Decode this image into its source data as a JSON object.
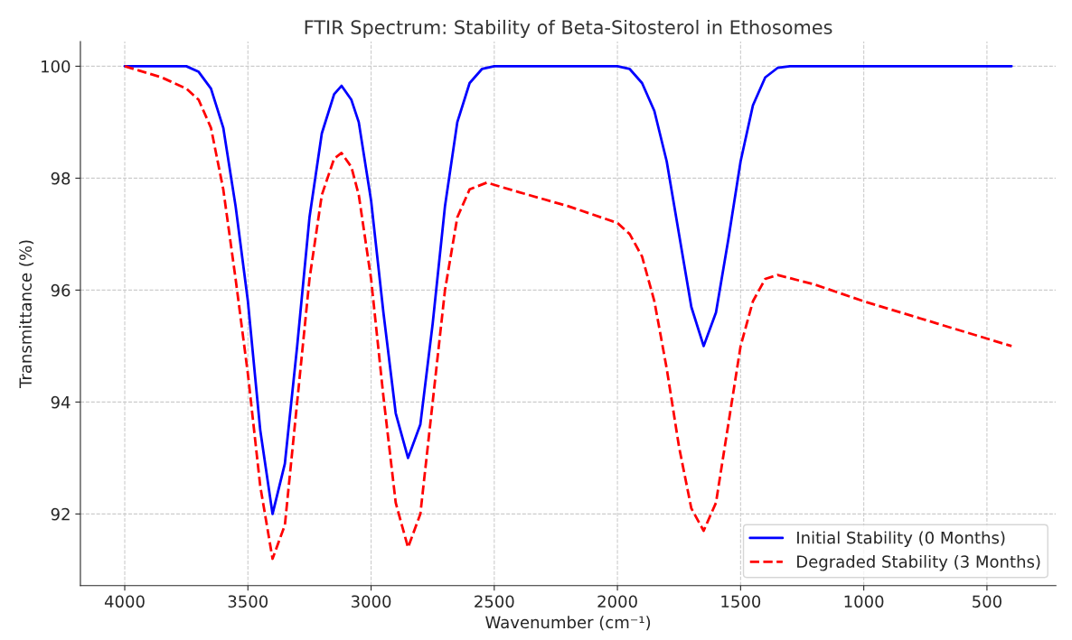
{
  "chart_data": {
    "type": "line",
    "title": "FTIR Spectrum: Stability of Beta-Sitosterol in Ethosomes",
    "xlabel": "Wavenumber (cm⁻¹)",
    "ylabel": "Transmittance (%)",
    "xlim": [
      4180,
      220
    ],
    "xticks": [
      4000,
      3500,
      3000,
      2500,
      2000,
      1500,
      1000,
      500
    ],
    "ylim": [
      90.72,
      100.44
    ],
    "yticks": [
      92,
      94,
      96,
      98,
      100
    ],
    "grid": true,
    "legend": "bottom right",
    "series": [
      {
        "name": "Initial Stability (0 Months)",
        "color": "#0000ff",
        "line_style": "solid",
        "x": [
          4000,
          3750,
          3700,
          3650,
          3600,
          3550,
          3500,
          3450,
          3400,
          3350,
          3300,
          3250,
          3200,
          3150,
          3120,
          3080,
          3050,
          3000,
          2950,
          2900,
          2850,
          2800,
          2750,
          2700,
          2650,
          2600,
          2550,
          2500,
          2000,
          1950,
          1900,
          1850,
          1800,
          1750,
          1700,
          1650,
          1600,
          1550,
          1500,
          1450,
          1400,
          1350,
          1300,
          400
        ],
        "values": [
          100,
          100,
          99.9,
          99.6,
          98.9,
          97.5,
          95.8,
          93.5,
          92.0,
          92.9,
          95.0,
          97.3,
          98.8,
          99.5,
          99.65,
          99.4,
          99.0,
          97.6,
          95.6,
          93.8,
          93.0,
          93.6,
          95.4,
          97.5,
          99.0,
          99.7,
          99.95,
          100,
          100,
          99.95,
          99.7,
          99.2,
          98.3,
          97.0,
          95.7,
          95.0,
          95.6,
          96.9,
          98.3,
          99.3,
          99.8,
          99.97,
          100,
          100
        ]
      },
      {
        "name": "Degraded Stability (3 Months)",
        "color": "#ff0000",
        "line_style": "dashed",
        "x": [
          4000,
          3850,
          3750,
          3700,
          3650,
          3600,
          3550,
          3500,
          3450,
          3400,
          3350,
          3300,
          3250,
          3200,
          3150,
          3120,
          3080,
          3050,
          3000,
          2950,
          2900,
          2850,
          2800,
          2750,
          2700,
          2650,
          2600,
          2530,
          2400,
          2200,
          2000,
          1950,
          1900,
          1850,
          1800,
          1750,
          1700,
          1650,
          1600,
          1550,
          1500,
          1450,
          1400,
          1350,
          1200,
          1000,
          700,
          400
        ],
        "values": [
          100,
          99.8,
          99.6,
          99.4,
          98.9,
          97.8,
          96.2,
          94.5,
          92.5,
          91.2,
          91.8,
          94.0,
          96.2,
          97.7,
          98.35,
          98.45,
          98.2,
          97.7,
          96.2,
          94.1,
          92.2,
          91.4,
          92.0,
          94.0,
          96.0,
          97.3,
          97.8,
          97.92,
          97.75,
          97.5,
          97.2,
          97.0,
          96.6,
          95.8,
          94.6,
          93.2,
          92.1,
          91.7,
          92.2,
          93.6,
          95.0,
          95.8,
          96.2,
          96.27,
          96.1,
          95.8,
          95.4,
          95.0
        ]
      }
    ]
  }
}
